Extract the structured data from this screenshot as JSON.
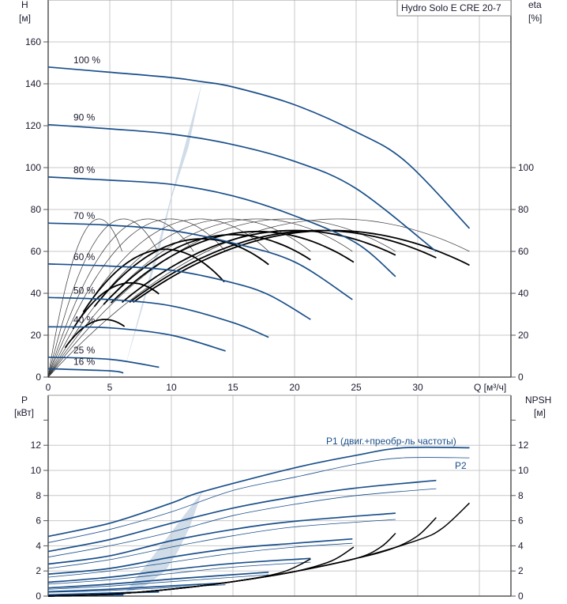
{
  "colors": {
    "curve": "#1a4f8a",
    "range_light": "#eef5fd",
    "range_dark": "#d0dce8",
    "eta": "#000000",
    "grid": "#c8c8c8",
    "label_blue": "#1a4f8a"
  },
  "chart_data": [
    {
      "type": "line",
      "title": "Hydro Solo E CRE 20-7",
      "xlabel": "Q [м³/ч]",
      "ylabel": "H",
      "ylabel_unit": "[м]",
      "y2label": "eta",
      "y2label_unit": "[%]",
      "xlim": [
        0,
        37.6
      ],
      "ylim": [
        0,
        180
      ],
      "y2lim": [
        0,
        180
      ],
      "grid": true,
      "x_ticks": [
        "0",
        "5",
        "10",
        "15",
        "20",
        "25",
        "30"
      ],
      "x_tick_values": [
        0,
        5,
        10,
        15,
        20,
        25,
        30
      ],
      "y_ticks": [
        0,
        20,
        40,
        60,
        80,
        100,
        120,
        140,
        160
      ],
      "y2_ticks": [
        0,
        20,
        40,
        60,
        80,
        100
      ],
      "head_curves": [
        {
          "name": "100 %",
          "points": [
            [
              0,
              148
            ],
            [
              5,
              145.5
            ],
            [
              10,
              143
            ],
            [
              12.5,
              141
            ],
            [
              15,
              138.5
            ],
            [
              20,
              130
            ],
            [
              25,
              117
            ],
            [
              29,
              103
            ],
            [
              34.2,
              71
            ]
          ]
        },
        {
          "name": "90 %",
          "points": [
            [
              0,
              120.5
            ],
            [
              5,
              118.5
            ],
            [
              10,
              116
            ],
            [
              15,
              111
            ],
            [
              20,
              103
            ],
            [
              25,
              90
            ],
            [
              31.5,
              60
            ]
          ]
        },
        {
          "name": "80 %",
          "points": [
            [
              0,
              95.5
            ],
            [
              5,
              94
            ],
            [
              10,
              92
            ],
            [
              15,
              86.5
            ],
            [
              20,
              77
            ],
            [
              25,
              64
            ],
            [
              28.2,
              48
            ]
          ]
        },
        {
          "name": "70 %",
          "points": [
            [
              0,
              73.5
            ],
            [
              5,
              72.5
            ],
            [
              10,
              70
            ],
            [
              15,
              64
            ],
            [
              20,
              55
            ],
            [
              24.7,
              37
            ]
          ]
        },
        {
          "name": "60 %",
          "points": [
            [
              0,
              54
            ],
            [
              5,
              53
            ],
            [
              10,
              51
            ],
            [
              15,
              45
            ],
            [
              18,
              39
            ],
            [
              21.3,
              27.5
            ]
          ]
        },
        {
          "name": "50 %",
          "points": [
            [
              0,
              38
            ],
            [
              5,
              37
            ],
            [
              10,
              34
            ],
            [
              15,
              26
            ],
            [
              17.9,
              19
            ]
          ]
        },
        {
          "name": "40 %",
          "points": [
            [
              0,
              24
            ],
            [
              5,
              23.5
            ],
            [
              10,
              20
            ],
            [
              14.4,
              12.5
            ]
          ]
        },
        {
          "name": "25 %",
          "points": [
            [
              0,
              9.5
            ],
            [
              5,
              8.5
            ],
            [
              9,
              4.7
            ]
          ]
        },
        {
          "name": "16 %",
          "points": [
            [
              0,
              4
            ],
            [
              5,
              3
            ],
            [
              6.1,
              2
            ]
          ]
        }
      ],
      "eta_curves_thin": {
        "peak_eta": 75.5,
        "end_eta": 60,
        "end_q": [
          6,
          8.9,
          11.8,
          14.4,
          17.9,
          21.3,
          24.7,
          28.2,
          34.2
        ]
      },
      "eta_curves_thick": [
        {
          "peak_q": 4.6,
          "peak_eta": 27.5,
          "end_q": 6.2
        },
        {
          "peak_q": 6.7,
          "peak_eta": 45,
          "end_q": 9
        },
        {
          "peak_q": 9.5,
          "peak_eta": 61,
          "end_q": 14.3
        },
        {
          "peak_q": 12.5,
          "peak_eta": 66,
          "end_q": 17.9
        },
        {
          "peak_q": 15,
          "peak_eta": 68,
          "end_q": 21.3
        },
        {
          "peak_q": 17,
          "peak_eta": 69.5,
          "end_q": 24.8
        },
        {
          "peak_q": 20,
          "peak_eta": 70,
          "end_q": 28.2
        },
        {
          "peak_q": 22,
          "peak_eta": 70,
          "end_q": 31.5
        },
        {
          "peak_q": 23,
          "peak_eta": 70,
          "end_q": 34.2
        }
      ],
      "range_lower_boundary": [
        [
          6.1,
          2
        ],
        [
          9,
          4.7
        ],
        [
          14.4,
          12.5
        ],
        [
          17.9,
          19
        ],
        [
          21.3,
          27.5
        ],
        [
          24.7,
          37
        ],
        [
          28.2,
          48
        ],
        [
          31.5,
          60
        ],
        [
          34.2,
          71
        ]
      ],
      "range_split_boundary": [
        [
          6.1,
          2
        ],
        [
          7,
          20
        ],
        [
          8,
          40
        ],
        [
          9,
          60
        ],
        [
          10,
          85
        ],
        [
          11.4,
          110
        ],
        [
          12.5,
          141
        ]
      ]
    },
    {
      "type": "line",
      "xlabel": "Q [м³/ч]",
      "ylabel": "P",
      "ylabel_unit": "[кВт]",
      "y2label": "NPSH",
      "y2label_unit": "[м]",
      "xlim": [
        0,
        37.6
      ],
      "ylim": [
        0,
        14
      ],
      "y2lim": [
        0,
        14
      ],
      "grid": true,
      "y_ticks": [
        0,
        2,
        4,
        6,
        8,
        10,
        12
      ],
      "y2_ticks": [
        0,
        2,
        4,
        6,
        8,
        10,
        12
      ],
      "annotations": {
        "p1": "P1 (двиг.+преобр-ль частоты)",
        "p2": "P2"
      },
      "p1_curves": [
        [
          [
            0,
            4.75
          ],
          [
            5,
            5.8
          ],
          [
            10,
            7.4
          ],
          [
            12.5,
            8.3
          ],
          [
            20,
            10.2
          ],
          [
            25,
            11.2
          ],
          [
            28.8,
            11.8
          ],
          [
            34.2,
            11.8
          ]
        ],
        [
          [
            0,
            3.55
          ],
          [
            5,
            4.5
          ],
          [
            10,
            5.8
          ],
          [
            15,
            7
          ],
          [
            20,
            7.9
          ],
          [
            25,
            8.6
          ],
          [
            31.5,
            9.2
          ]
        ],
        [
          [
            0,
            2.55
          ],
          [
            5,
            3.2
          ],
          [
            10,
            4.4
          ],
          [
            15,
            5.3
          ],
          [
            20,
            5.95
          ],
          [
            28.2,
            6.6
          ]
        ],
        [
          [
            0,
            1.75
          ],
          [
            5,
            2.2
          ],
          [
            10,
            3.1
          ],
          [
            15,
            3.8
          ],
          [
            20,
            4.2
          ],
          [
            24.7,
            4.55
          ]
        ],
        [
          [
            0,
            1.1
          ],
          [
            5,
            1.5
          ],
          [
            10,
            2.1
          ],
          [
            15,
            2.6
          ],
          [
            21.3,
            3
          ]
        ],
        [
          [
            0,
            0.65
          ],
          [
            5,
            0.95
          ],
          [
            10,
            1.35
          ],
          [
            17.9,
            1.9
          ]
        ],
        [
          [
            0,
            0.35
          ],
          [
            5,
            0.55
          ],
          [
            14.4,
            1.05
          ]
        ],
        [
          [
            0,
            0.1
          ],
          [
            9,
            0.35
          ]
        ],
        [
          [
            0,
            0.05
          ],
          [
            6.1,
            0.1
          ]
        ]
      ],
      "p2_curves": [
        [
          [
            0,
            4.25
          ],
          [
            5,
            5.3
          ],
          [
            10,
            6.7
          ],
          [
            15,
            8.4
          ],
          [
            20,
            9.45
          ],
          [
            25,
            10.5
          ],
          [
            28.8,
            11
          ],
          [
            34.2,
            11
          ]
        ],
        [
          [
            0,
            3.1
          ],
          [
            5,
            4
          ],
          [
            10,
            5.1
          ],
          [
            15,
            6.4
          ],
          [
            20,
            7.3
          ],
          [
            25,
            8
          ],
          [
            31.5,
            8.55
          ]
        ],
        [
          [
            0,
            2.2
          ],
          [
            5,
            2.9
          ],
          [
            10,
            3.9
          ],
          [
            15,
            4.8
          ],
          [
            20,
            5.5
          ],
          [
            28.2,
            6.1
          ]
        ],
        [
          [
            0,
            1.5
          ],
          [
            5,
            2
          ],
          [
            10,
            2.7
          ],
          [
            15,
            3.4
          ],
          [
            20,
            3.9
          ],
          [
            24.7,
            4.2
          ]
        ],
        [
          [
            0,
            0.95
          ],
          [
            5,
            1.3
          ],
          [
            10,
            1.8
          ],
          [
            15,
            2.3
          ],
          [
            21.3,
            2.7
          ]
        ],
        [
          [
            0,
            0.55
          ],
          [
            5,
            0.8
          ],
          [
            10,
            1.15
          ],
          [
            17.9,
            1.7
          ]
        ],
        [
          [
            0,
            0.3
          ],
          [
            5,
            0.45
          ],
          [
            14.4,
            0.9
          ]
        ],
        [
          [
            0,
            0.08
          ],
          [
            9,
            0.3
          ]
        ],
        [
          [
            0,
            0.03
          ],
          [
            6.1,
            0.08
          ]
        ]
      ],
      "npsh_curves": [
        [
          [
            0,
            0
          ],
          [
            5,
            0.15
          ],
          [
            10,
            0.55
          ],
          [
            15,
            1.15
          ],
          [
            19,
            1.9
          ],
          [
            21.3,
            2.95
          ]
        ],
        [
          [
            0,
            0
          ],
          [
            5,
            0.15
          ],
          [
            10,
            0.55
          ],
          [
            15,
            1.15
          ],
          [
            20,
            1.95
          ],
          [
            23,
            2.8
          ],
          [
            24.8,
            3.9
          ]
        ],
        [
          [
            0,
            0
          ],
          [
            5,
            0.15
          ],
          [
            10,
            0.55
          ],
          [
            15,
            1.15
          ],
          [
            20,
            1.95
          ],
          [
            25,
            3.0
          ],
          [
            27,
            3.9
          ],
          [
            28.2,
            5
          ]
        ],
        [
          [
            0,
            0
          ],
          [
            5,
            0.15
          ],
          [
            10,
            0.55
          ],
          [
            15,
            1.15
          ],
          [
            20,
            1.95
          ],
          [
            25,
            3.0
          ],
          [
            28,
            3.8
          ],
          [
            30,
            4.8
          ],
          [
            31.5,
            6.25
          ]
        ],
        [
          [
            0,
            0
          ],
          [
            5,
            0.15
          ],
          [
            10,
            0.55
          ],
          [
            15,
            1.15
          ],
          [
            20,
            1.95
          ],
          [
            25,
            3.0
          ],
          [
            30,
            4.45
          ],
          [
            32,
            5.4
          ],
          [
            34.2,
            7.4
          ]
        ]
      ],
      "range_lower_boundary": [
        [
          6.1,
          0.1
        ],
        [
          9,
          0.35
        ],
        [
          14.4,
          1.05
        ],
        [
          17.9,
          1.9
        ],
        [
          21.3,
          3
        ],
        [
          24.7,
          4.55
        ],
        [
          28.2,
          6.6
        ],
        [
          31.5,
          9.2
        ],
        [
          34.2,
          11.8
        ]
      ],
      "range_split_boundary": [
        [
          6.1,
          0.1
        ],
        [
          8,
          0.9
        ],
        [
          9.5,
          2
        ],
        [
          10.5,
          3.5
        ],
        [
          11.5,
          5.5
        ],
        [
          12.5,
          8.3
        ]
      ]
    }
  ]
}
